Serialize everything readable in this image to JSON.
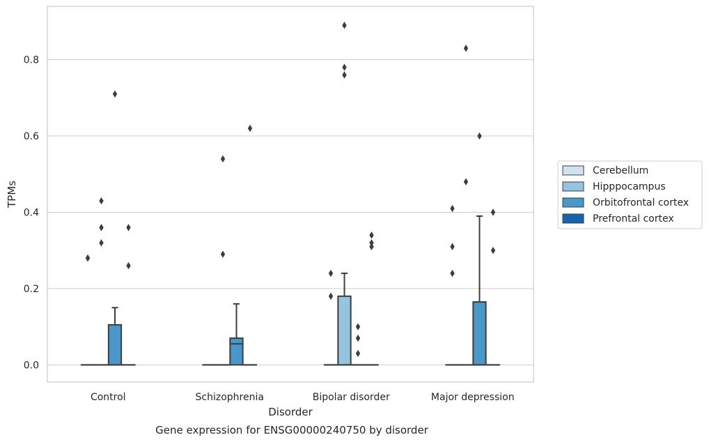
{
  "chart_data": {
    "type": "box",
    "title": "Gene expression for ENSG00000240750 by disorder",
    "xlabel": "Disorder",
    "ylabel": "TPMs",
    "ylim": [
      -0.045,
      0.94
    ],
    "yticks": [
      "0.0",
      "0.2",
      "0.4",
      "0.6",
      "0.8"
    ],
    "ytick_values": [
      0.0,
      0.2,
      0.4,
      0.6,
      0.8
    ],
    "grid": true,
    "legend_position": "right",
    "categories": [
      "Control",
      "Schizophrenia",
      "Bipolar disorder",
      "Major depression"
    ],
    "series": [
      {
        "name": "Cerebellum",
        "color": "#d0e1f2",
        "boxes": [
          {
            "q1": 0,
            "median": 0,
            "q3": 0,
            "whisker_low": 0,
            "whisker_high": 0,
            "outliers": [
              0.28,
              0.28
            ]
          },
          {
            "q1": 0,
            "median": 0,
            "q3": 0,
            "whisker_low": 0,
            "whisker_high": 0,
            "outliers": []
          },
          {
            "q1": 0,
            "median": 0,
            "q3": 0,
            "whisker_low": 0,
            "whisker_high": 0,
            "outliers": [
              0.24,
              0.18
            ]
          },
          {
            "q1": 0,
            "median": 0,
            "q3": 0,
            "whisker_low": 0,
            "whisker_high": 0,
            "outliers": [
              0.41,
              0.31,
              0.24
            ]
          }
        ]
      },
      {
        "name": "Hipppocampus",
        "color": "#94c4df",
        "boxes": [
          {
            "q1": 0,
            "median": 0,
            "q3": 0,
            "whisker_low": 0,
            "whisker_high": 0,
            "outliers": [
              0.43,
              0.36,
              0.32
            ]
          },
          {
            "q1": 0,
            "median": 0,
            "q3": 0,
            "whisker_low": 0,
            "whisker_high": 0,
            "outliers": [
              0.54,
              0.29
            ]
          },
          {
            "q1": 0,
            "median": 0,
            "q3": 0.18,
            "whisker_low": 0,
            "whisker_high": 0.24,
            "outliers": [
              0.89,
              0.78,
              0.76
            ]
          },
          {
            "q1": 0,
            "median": 0,
            "q3": 0,
            "whisker_low": 0,
            "whisker_high": 0,
            "outliers": [
              0.83,
              0.48
            ]
          }
        ]
      },
      {
        "name": "Orbitofrontal cortex",
        "color": "#4a98c9",
        "boxes": [
          {
            "q1": 0,
            "median": 0,
            "q3": 0.105,
            "whisker_low": 0,
            "whisker_high": 0.15,
            "outliers": [
              0.71
            ]
          },
          {
            "q1": 0,
            "median": 0.055,
            "q3": 0.07,
            "whisker_low": 0,
            "whisker_high": 0.16,
            "outliers": []
          },
          {
            "q1": 0,
            "median": 0,
            "q3": 0,
            "whisker_low": 0,
            "whisker_high": 0,
            "outliers": [
              0.1,
              0.07,
              0.03
            ]
          },
          {
            "q1": 0,
            "median": 0,
            "q3": 0.165,
            "whisker_low": 0,
            "whisker_high": 0.39,
            "outliers": [
              0.6
            ]
          }
        ]
      },
      {
        "name": "Prefrontal cortex",
        "color": "#1764ab",
        "boxes": [
          {
            "q1": 0,
            "median": 0,
            "q3": 0,
            "whisker_low": 0,
            "whisker_high": 0,
            "outliers": [
              0.36,
              0.26
            ]
          },
          {
            "q1": 0,
            "median": 0,
            "q3": 0,
            "whisker_low": 0,
            "whisker_high": 0,
            "outliers": [
              0.62
            ]
          },
          {
            "q1": 0,
            "median": 0,
            "q3": 0,
            "whisker_low": 0,
            "whisker_high": 0,
            "outliers": [
              0.34,
              0.32,
              0.31
            ]
          },
          {
            "q1": 0,
            "median": 0,
            "q3": 0,
            "whisker_low": 0,
            "whisker_high": 0,
            "outliers": [
              0.4,
              0.3
            ]
          }
        ]
      }
    ],
    "legend": {
      "entries": [
        "Cerebellum",
        "Hipppocampus",
        "Orbitofrontal cortex",
        "Prefrontal cortex"
      ]
    }
  }
}
